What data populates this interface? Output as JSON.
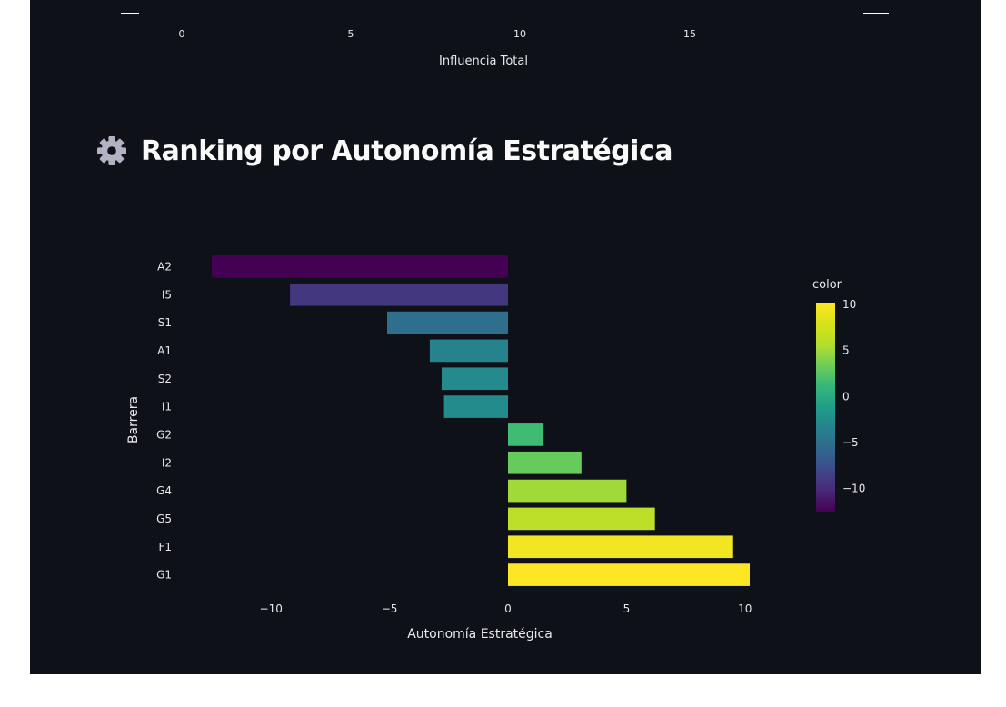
{
  "top_axis": {
    "ticks": [
      "0",
      "5",
      "10",
      "15"
    ],
    "label": "Influencia Total"
  },
  "header": {
    "title": "Ranking por Autonomía Estratégica",
    "icon": "gear-icon"
  },
  "chart_data": {
    "type": "bar",
    "orientation": "horizontal",
    "categories": [
      "A2",
      "I5",
      "S1",
      "A1",
      "S2",
      "I1",
      "G2",
      "I2",
      "G4",
      "G5",
      "F1",
      "G1"
    ],
    "values": [
      -12.5,
      -9.2,
      -5.1,
      -3.3,
      -2.8,
      -2.7,
      1.5,
      3.1,
      5.0,
      6.2,
      9.5,
      10.2
    ],
    "xlabel": "Autonomía Estratégica",
    "ylabel": "Barrera",
    "xlim": [
      -12.5,
      10.2
    ],
    "xticks": [
      "−10",
      "−5",
      "0",
      "5",
      "10"
    ],
    "xtick_values": [
      -10,
      -5,
      0,
      5,
      10
    ],
    "colorscale": "viridis",
    "colorbar": {
      "title": "color",
      "ticks": [
        "10",
        "5",
        "0",
        "−5",
        "−10"
      ],
      "tick_values": [
        10,
        5,
        0,
        -5,
        -10
      ],
      "range": [
        -12.5,
        10.2
      ]
    },
    "grid": false,
    "legend": "none"
  }
}
